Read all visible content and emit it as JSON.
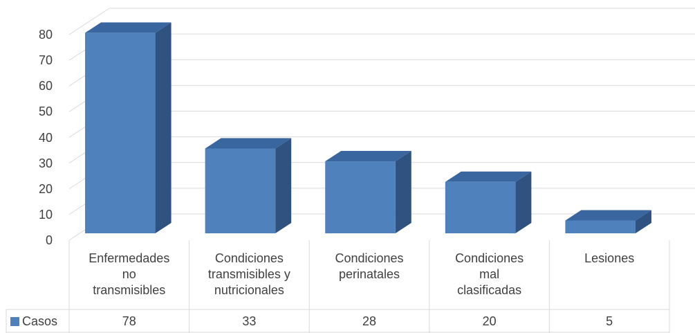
{
  "chart_data": {
    "type": "bar",
    "title": "",
    "xlabel": "",
    "ylabel": "",
    "categories": [
      "Enfermedades no transmisibles",
      "Condiciones transmisibles y nutricionales",
      "Condiciones perinatales",
      "Condiciones mal clasificadas",
      "Lesiones"
    ],
    "category_lines": [
      [
        "Enfermedades",
        "no",
        "transmisibles"
      ],
      [
        "Condiciones",
        "transmisibles y",
        "nutricionales"
      ],
      [
        "Condiciones",
        "perinatales"
      ],
      [
        "Condiciones",
        "mal",
        "clasificadas"
      ],
      [
        "Lesiones"
      ]
    ],
    "series": [
      {
        "name": "Casos",
        "values": [
          78,
          33,
          28,
          20,
          5
        ],
        "color": "#4F81BD"
      }
    ],
    "ylim": [
      0,
      80
    ],
    "yticks": [
      "0",
      "10",
      "20",
      "30",
      "40",
      "50",
      "60",
      "70",
      "80"
    ],
    "grid": true,
    "data_table": true,
    "legend": "data-table-left",
    "style": "3d-column"
  }
}
